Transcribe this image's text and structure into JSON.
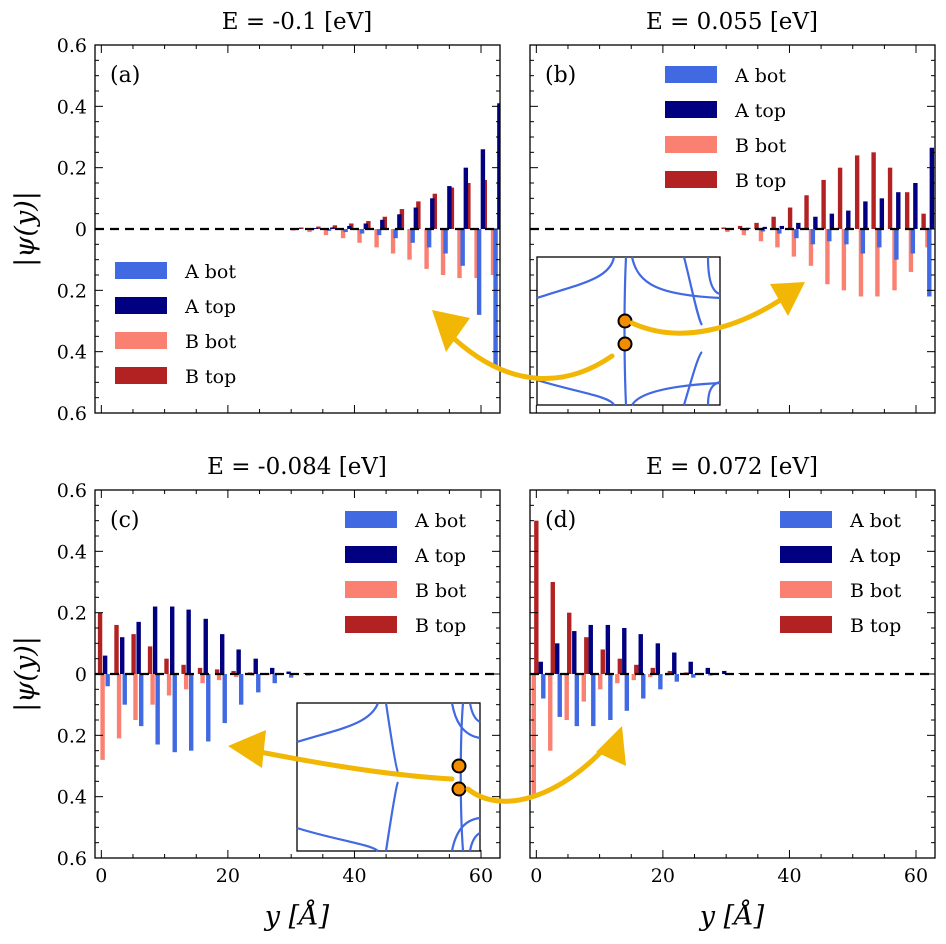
{
  "figure": {
    "ylabel": "|ψ(y)|",
    "xlabel": "y [Å]"
  },
  "colors": {
    "A_bot": "#4169e1",
    "A_top": "#000080",
    "B_bot": "#fa8072",
    "B_top": "#b22222",
    "arrow": "#f2b705",
    "marker": "#f28c00",
    "inset_line": "#4169e1"
  },
  "chart_data": [
    {
      "type": "bar",
      "id": "a",
      "title": "E = -0.1 [eV]",
      "tag": "(a)",
      "xlim": [
        -1,
        63
      ],
      "ylim": [
        -0.6,
        0.6
      ],
      "xticks": [],
      "yticks": [
        0.6,
        0.4,
        0.2,
        0,
        -0.2,
        -0.4,
        -0.6
      ],
      "ytick_labels": [
        "0.6",
        "0.4",
        "0.2",
        "0",
        "0.2",
        "0.4",
        "0.6"
      ],
      "legend": {
        "position": "left",
        "entries": [
          "A bot",
          "A top",
          "B bot",
          "B top"
        ]
      },
      "series": [
        {
          "name": "B top",
          "x": [
            31.6,
            34.3,
            36.9,
            39.5,
            42.2,
            44.8,
            47.5,
            50.1,
            52.7,
            55.4,
            58.0,
            60.6
          ],
          "values": [
            0.005,
            0.008,
            0.012,
            0.018,
            0.026,
            0.04,
            0.065,
            0.09,
            0.115,
            0.135,
            0.15,
            0.16
          ]
        },
        {
          "name": "A top",
          "x": [
            31.2,
            33.9,
            36.5,
            39.2,
            41.8,
            44.4,
            47.1,
            49.7,
            52.3,
            55.0,
            57.6,
            60.3,
            62.9
          ],
          "values": [
            0.002,
            0.003,
            0.005,
            0.01,
            0.018,
            0.03,
            0.048,
            0.07,
            0.1,
            0.14,
            0.2,
            0.26,
            0.41
          ]
        },
        {
          "name": "B bot",
          "x": [
            30.3,
            32.9,
            35.5,
            38.2,
            40.8,
            43.5,
            46.1,
            48.7,
            51.4,
            54.0,
            56.6,
            59.3,
            61.9
          ],
          "values": [
            -0.005,
            -0.01,
            -0.02,
            -0.03,
            -0.045,
            -0.06,
            -0.08,
            -0.1,
            -0.13,
            -0.15,
            -0.16,
            -0.16,
            -0.15
          ]
        },
        {
          "name": "A bot",
          "x": [
            30.7,
            33.3,
            36.0,
            38.6,
            41.2,
            43.9,
            46.5,
            49.2,
            51.8,
            54.4,
            57.1,
            59.7,
            62.3
          ],
          "values": [
            -0.002,
            -0.004,
            -0.006,
            -0.01,
            -0.015,
            -0.02,
            -0.03,
            -0.045,
            -0.06,
            -0.08,
            -0.12,
            -0.28,
            -0.45
          ]
        }
      ]
    },
    {
      "type": "bar",
      "id": "b",
      "title": "E = 0.055 [eV]",
      "tag": "(b)",
      "xlim": [
        -1,
        63
      ],
      "ylim": [
        -0.6,
        0.6
      ],
      "xticks": [],
      "yticks": [],
      "ytick_labels": [],
      "legend": {
        "position": "top-right",
        "entries": [
          "A bot",
          "A top",
          "B bot",
          "B top"
        ]
      },
      "series": [
        {
          "name": "B top",
          "x": [
            29.6,
            32.2,
            34.8,
            37.5,
            40.1,
            42.7,
            45.4,
            48.0,
            50.7,
            53.3,
            55.9,
            58.6,
            61.2
          ],
          "values": [
            0.005,
            0.01,
            0.02,
            0.04,
            0.07,
            0.11,
            0.16,
            0.2,
            0.24,
            0.25,
            0.2,
            0.12,
            0.05
          ]
        },
        {
          "name": "A top",
          "x": [
            30.9,
            33.5,
            36.1,
            38.8,
            41.4,
            44.1,
            46.7,
            49.3,
            52.0,
            54.6,
            57.2,
            59.9,
            62.5
          ],
          "values": [
            0.002,
            0.004,
            0.007,
            0.01,
            0.02,
            0.04,
            0.05,
            0.06,
            0.09,
            0.1,
            0.12,
            0.15,
            0.265
          ]
        },
        {
          "name": "B bot",
          "x": [
            30.2,
            32.8,
            35.5,
            38.1,
            40.7,
            43.4,
            46.0,
            48.6,
            51.3,
            53.9,
            56.6,
            59.2,
            61.8
          ],
          "values": [
            -0.01,
            -0.02,
            -0.04,
            -0.06,
            -0.09,
            -0.12,
            -0.18,
            -0.2,
            -0.22,
            -0.22,
            -0.2,
            -0.14,
            -0.06
          ]
        },
        {
          "name": "A bot",
          "x": [
            30.5,
            33.1,
            35.8,
            38.4,
            41.1,
            43.7,
            46.3,
            49.0,
            51.6,
            54.2,
            56.9,
            59.5,
            62.1
          ],
          "values": [
            -0.002,
            -0.004,
            -0.008,
            -0.015,
            -0.03,
            -0.05,
            -0.04,
            -0.05,
            -0.08,
            -0.06,
            -0.1,
            -0.08,
            -0.22
          ]
        }
      ]
    },
    {
      "type": "bar",
      "id": "c",
      "title": "E = -0.084 [eV]",
      "tag": "(c)",
      "xlim": [
        -1,
        63
      ],
      "ylim": [
        -0.6,
        0.6
      ],
      "xticks": [
        0,
        20,
        40,
        60
      ],
      "yticks": [
        0.6,
        0.4,
        0.2,
        0,
        -0.2,
        -0.4,
        -0.6
      ],
      "ytick_labels": [
        "0.6",
        "0.4",
        "0.2",
        "0",
        "0.2",
        "0.4",
        "0.6"
      ],
      "legend": {
        "position": "top-right",
        "entries": [
          "A bot",
          "A top",
          "B bot",
          "B top"
        ]
      },
      "series": [
        {
          "name": "B top",
          "x": [
            -0.2,
            2.4,
            5.1,
            7.7,
            10.3,
            13.0,
            15.6,
            18.3,
            20.9,
            23.5,
            26.2
          ],
          "values": [
            0.2,
            0.16,
            0.13,
            0.09,
            0.05,
            0.03,
            0.02,
            0.015,
            0.01,
            0.005,
            0.003
          ]
        },
        {
          "name": "A top",
          "x": [
            0.6,
            3.3,
            5.9,
            8.5,
            11.2,
            13.8,
            16.5,
            19.1,
            21.7,
            24.4,
            27.0,
            29.6,
            32.3
          ],
          "values": [
            0.06,
            0.12,
            0.17,
            0.22,
            0.22,
            0.21,
            0.18,
            0.13,
            0.08,
            0.05,
            0.02,
            0.008,
            0.003
          ]
        },
        {
          "name": "B bot",
          "x": [
            0.2,
            2.8,
            5.4,
            8.1,
            10.7,
            13.4,
            16.0,
            18.6,
            21.3,
            23.9,
            26.5
          ],
          "values": [
            -0.28,
            -0.21,
            -0.15,
            -0.1,
            -0.07,
            -0.05,
            -0.03,
            -0.02,
            -0.01,
            -0.005,
            -0.003
          ]
        },
        {
          "name": "A bot",
          "x": [
            1.0,
            3.7,
            6.3,
            8.9,
            11.6,
            14.2,
            16.9,
            19.5,
            22.1,
            24.8,
            27.4,
            30.0,
            32.7
          ],
          "values": [
            -0.04,
            -0.1,
            -0.17,
            -0.23,
            -0.255,
            -0.25,
            -0.22,
            -0.16,
            -0.1,
            -0.06,
            -0.03,
            -0.012,
            -0.005
          ]
        }
      ]
    },
    {
      "type": "bar",
      "id": "d",
      "title": "E = 0.072 [eV]",
      "tag": "(d)",
      "xlim": [
        -1,
        63
      ],
      "ylim": [
        -0.6,
        0.6
      ],
      "xticks": [
        0,
        20,
        40,
        60
      ],
      "yticks": [],
      "ytick_labels": [],
      "legend": {
        "position": "top-right",
        "entries": [
          "A bot",
          "A top",
          "B bot",
          "B top"
        ]
      },
      "series": [
        {
          "name": "B top",
          "x": [
            0.0,
            2.6,
            5.2,
            7.9,
            10.5,
            13.2,
            15.8,
            18.4,
            21.1,
            23.7
          ],
          "values": [
            0.5,
            0.3,
            0.2,
            0.12,
            0.08,
            0.05,
            0.03,
            0.02,
            0.01,
            0.005
          ]
        },
        {
          "name": "A top",
          "x": [
            0.7,
            3.3,
            6.0,
            8.6,
            11.3,
            13.9,
            16.5,
            19.2,
            21.8,
            24.4,
            27.1,
            29.7,
            32.3
          ],
          "values": [
            0.04,
            0.1,
            0.14,
            0.16,
            0.16,
            0.15,
            0.13,
            0.1,
            0.07,
            0.04,
            0.02,
            0.01,
            0.003
          ]
        },
        {
          "name": "B bot",
          "x": [
            -0.4,
            2.2,
            4.8,
            7.5,
            10.1,
            12.8,
            15.4,
            18.0,
            20.7,
            23.3
          ],
          "values": [
            -0.4,
            -0.25,
            -0.15,
            -0.09,
            -0.05,
            -0.03,
            -0.02,
            -0.01,
            -0.005,
            -0.003
          ]
        },
        {
          "name": "A bot",
          "x": [
            1.1,
            3.7,
            6.4,
            9.0,
            11.7,
            14.3,
            16.9,
            19.6,
            22.2,
            24.8,
            27.5,
            30.1
          ],
          "values": [
            -0.08,
            -0.14,
            -0.17,
            -0.17,
            -0.15,
            -0.12,
            -0.08,
            -0.05,
            -0.025,
            -0.012,
            -0.005,
            -0.002
          ]
        }
      ]
    }
  ]
}
